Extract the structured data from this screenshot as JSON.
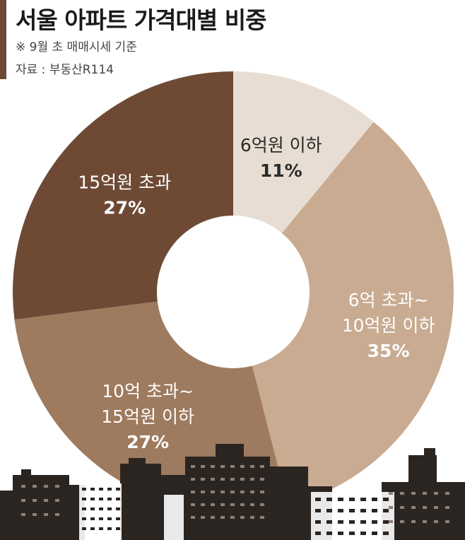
{
  "header": {
    "title": "서울 아파트 가격대별 비중",
    "note": "※ 9월 초 매매시세 기준",
    "source": "자료 : 부동산R114"
  },
  "chart_data": {
    "type": "pie",
    "title": "서울 아파트 가격대별 비중",
    "slices": [
      {
        "label_lines": [
          "6억원 이하"
        ],
        "value": 11,
        "value_label": "11%",
        "color": "#e8ddd2",
        "text_color": "#2a2a2a"
      },
      {
        "label_lines": [
          "6억 초과~",
          "10억원 이하"
        ],
        "value": 35,
        "value_label": "35%",
        "color": "#c8ab91",
        "text_color": "#ffffff"
      },
      {
        "label_lines": [
          "10억 초과~",
          "15억원 이하"
        ],
        "value": 27,
        "value_label": "27%",
        "color": "#9e7a5e",
        "text_color": "#ffffff"
      },
      {
        "label_lines": [
          "15억원 초과"
        ],
        "value": 27,
        "value_label": "27%",
        "color": "#6e4a35",
        "text_color": "#ffffff"
      }
    ],
    "start_angle_deg": 0,
    "direction": "clockwise",
    "donut": true
  }
}
